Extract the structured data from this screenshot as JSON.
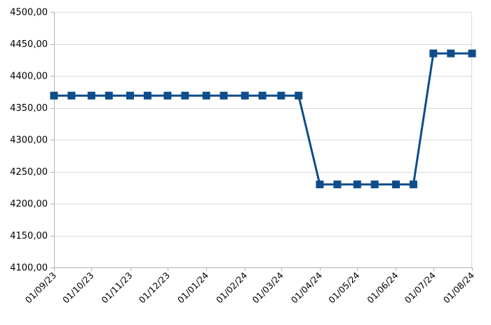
{
  "chart_data": {
    "type": "line",
    "title": "",
    "xlabel": "",
    "ylabel": "",
    "legend": "none",
    "grid": "horizontal",
    "y_axis": {
      "min": 4100,
      "max": 4500,
      "step": 50
    },
    "y_tick_labels": [
      "4500,00",
      "4450,00",
      "4400,00",
      "4350,00",
      "4300,00",
      "4250,00",
      "4200,00",
      "4150,00",
      "4100,00"
    ],
    "x_tick_labels": [
      "01/09/23",
      "01/10/23",
      "01/11/23",
      "01/12/23",
      "01/01/24",
      "01/02/24",
      "01/03/24",
      "01/04/24",
      "01/05/24",
      "01/06/24",
      "01/07/24",
      "01/08/24"
    ],
    "series": [
      {
        "color": "#0e4c8a",
        "marker": "square",
        "points": [
          {
            "date": "01/09/23",
            "value": 4369
          },
          {
            "date": "15/09/23",
            "value": 4369
          },
          {
            "date": "01/10/23",
            "value": 4369
          },
          {
            "date": "15/10/23",
            "value": 4369
          },
          {
            "date": "01/11/23",
            "value": 4369
          },
          {
            "date": "15/11/23",
            "value": 4369
          },
          {
            "date": "01/12/23",
            "value": 4369
          },
          {
            "date": "15/12/23",
            "value": 4369
          },
          {
            "date": "01/01/24",
            "value": 4369
          },
          {
            "date": "15/01/24",
            "value": 4369
          },
          {
            "date": "01/02/24",
            "value": 4369
          },
          {
            "date": "15/02/24",
            "value": 4369
          },
          {
            "date": "01/03/24",
            "value": 4369
          },
          {
            "date": "15/03/24",
            "value": 4369
          },
          {
            "date": "01/04/24",
            "value": 4230
          },
          {
            "date": "15/04/24",
            "value": 4230
          },
          {
            "date": "01/05/24",
            "value": 4230
          },
          {
            "date": "15/05/24",
            "value": 4230
          },
          {
            "date": "01/06/24",
            "value": 4230
          },
          {
            "date": "15/06/24",
            "value": 4230
          },
          {
            "date": "01/07/24",
            "value": 4435
          },
          {
            "date": "15/07/24",
            "value": 4435
          },
          {
            "date": "01/08/24",
            "value": 4435
          }
        ]
      }
    ],
    "colors": {
      "background": "#ffffff",
      "gridline": "#d9d9d9",
      "axis": "#b3b3b3",
      "text": "#000000"
    }
  }
}
